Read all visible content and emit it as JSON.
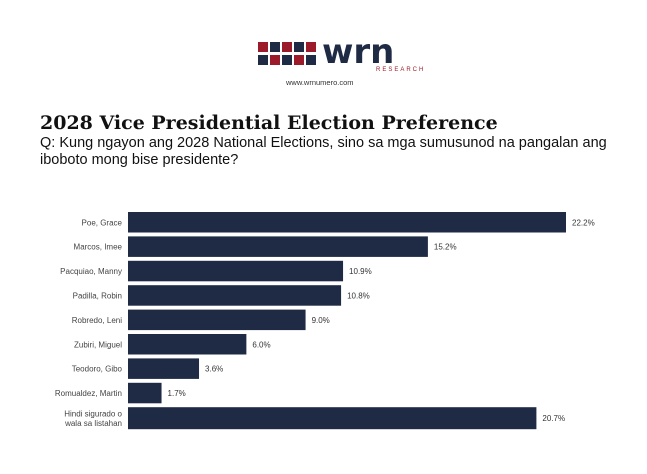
{
  "logo": {
    "wordmark": "wrn",
    "subtext": "RESEARCH",
    "url": "www.wrnumero.com",
    "colors": {
      "red": "#9b1b2a",
      "navy": "#1f2a44"
    }
  },
  "title": "2028 Vice Presidential Election Preference",
  "question": "Q: Kung ngayon ang 2028 National Elections, sino sa mga sumusunod na pangalan ang iboboto mong bise presidente?",
  "chart_data": {
    "type": "bar",
    "orientation": "horizontal",
    "categories": [
      [
        "Poe, Grace"
      ],
      [
        "Marcos, Imee"
      ],
      [
        "Pacquiao, Manny"
      ],
      [
        "Padilla, Robin"
      ],
      [
        "Robredo, Leni"
      ],
      [
        "Zubiri, Miguel"
      ],
      [
        "Teodoro, Gibo"
      ],
      [
        "Romualdez, Martin"
      ],
      [
        "Hindi sigurado o",
        "wala sa listahan"
      ]
    ],
    "values": [
      22.2,
      15.2,
      10.9,
      10.8,
      9.0,
      6.0,
      3.6,
      1.7,
      20.7
    ],
    "value_labels": [
      "22.2%",
      "15.2%",
      "10.9%",
      "10.8%",
      "9.0%",
      "6.0%",
      "3.6%",
      "1.7%",
      "20.7%"
    ],
    "bar_color": "#1f2a44",
    "xlim": [
      0,
      22.2
    ],
    "grid": false,
    "legend": "none"
  }
}
